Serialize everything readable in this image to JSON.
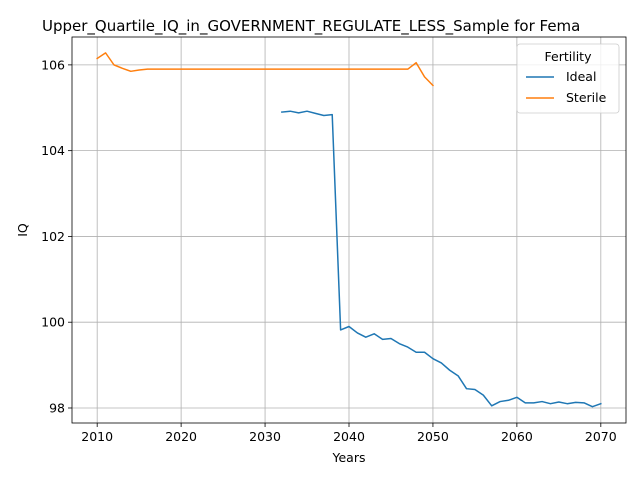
{
  "chart_data": {
    "type": "line",
    "title": "Upper_Quartile_IQ_in_GOVERNMENT_REGULATE_LESS_Sample for Fema",
    "xlabel": "Years",
    "ylabel": "IQ",
    "xlim": [
      2007,
      2073
    ],
    "ylim": [
      97.65,
      106.65
    ],
    "xticks": [
      2010,
      2020,
      2030,
      2040,
      2050,
      2060,
      2070
    ],
    "yticks": [
      98,
      100,
      102,
      104,
      106
    ],
    "grid": true,
    "legend": {
      "title": "Fertility",
      "placement": "top-right"
    },
    "series": [
      {
        "name": "Ideal",
        "color": "#1f77b4",
        "x": [
          2032,
          2033,
          2034,
          2035,
          2036,
          2037,
          2038,
          2039,
          2040,
          2041,
          2042,
          2043,
          2044,
          2045,
          2046,
          2047,
          2048,
          2049,
          2050,
          2051,
          2052,
          2053,
          2054,
          2055,
          2056,
          2057,
          2058,
          2059,
          2060,
          2061,
          2062,
          2063,
          2064,
          2065,
          2066,
          2067,
          2068,
          2069,
          2070
        ],
        "y": [
          104.9,
          104.92,
          104.88,
          104.92,
          104.87,
          104.82,
          104.84,
          99.82,
          99.9,
          99.75,
          99.65,
          99.73,
          99.6,
          99.62,
          99.5,
          99.42,
          99.3,
          99.3,
          99.15,
          99.05,
          98.88,
          98.75,
          98.45,
          98.43,
          98.3,
          98.05,
          98.15,
          98.18,
          98.25,
          98.12,
          98.12,
          98.15,
          98.1,
          98.14,
          98.1,
          98.13,
          98.12,
          98.03,
          98.1
        ]
      },
      {
        "name": "Sterile",
        "color": "#ff7f0e",
        "x": [
          2010,
          2011,
          2012,
          2013,
          2014,
          2015,
          2016,
          2020,
          2025,
          2030,
          2035,
          2040,
          2045,
          2047,
          2048,
          2049,
          2050
        ],
        "y": [
          106.15,
          106.28,
          106.0,
          105.92,
          105.85,
          105.88,
          105.9,
          105.9,
          105.9,
          105.9,
          105.9,
          105.9,
          105.9,
          105.9,
          106.05,
          105.72,
          105.52
        ]
      }
    ]
  }
}
